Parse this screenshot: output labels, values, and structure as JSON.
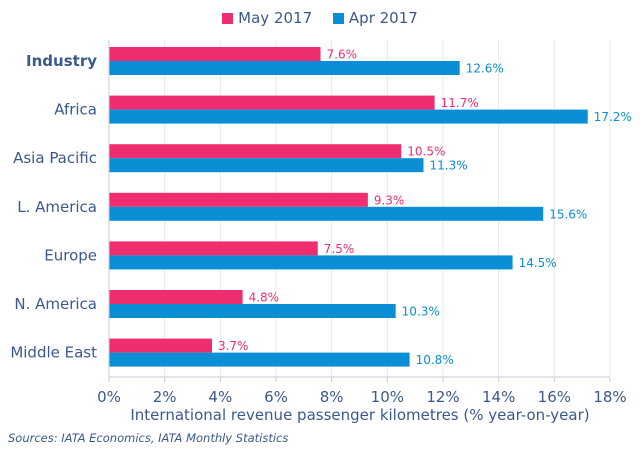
{
  "chart_data": {
    "type": "bar",
    "orientation": "horizontal",
    "title": "",
    "categories": [
      "Industry",
      "Africa",
      "Asia Pacific",
      "L. America",
      "Europe",
      "N. America",
      "Middle East"
    ],
    "emphasized_category": "Industry",
    "series": [
      {
        "name": "May 2017",
        "color": "#ef2d70",
        "values": [
          7.6,
          11.7,
          10.5,
          9.3,
          7.5,
          4.8,
          3.7
        ],
        "labels": [
          "7.6%",
          "11.7%",
          "10.5%",
          "9.3%",
          "7.5%",
          "4.8%",
          "3.7%"
        ]
      },
      {
        "name": "Apr 2017",
        "color": "#0a8fd6",
        "values": [
          12.6,
          17.2,
          11.3,
          15.6,
          14.5,
          10.3,
          10.8
        ],
        "labels": [
          "12.6%",
          "17.2%",
          "11.3%",
          "15.6%",
          "14.5%",
          "10.3%",
          "10.8%"
        ]
      }
    ],
    "xlabel": "International revenue passenger kilometres (% year-on-year)",
    "ylabel": "",
    "xlim": [
      0,
      18
    ],
    "xticks": [
      0,
      2,
      4,
      6,
      8,
      10,
      12,
      14,
      16,
      18
    ],
    "xtick_labels": [
      "0%",
      "2%",
      "4%",
      "6%",
      "8%",
      "10%",
      "12%",
      "14%",
      "16%",
      "18%"
    ],
    "grid": true,
    "legend_position": "top-center",
    "label_color": "#3a5a8c",
    "gridline_color": "#e4e8ee",
    "axis_color": "#c4cbd6"
  },
  "legend": [
    {
      "label": "May 2017",
      "color": "#ef2d70"
    },
    {
      "label": "Apr 2017",
      "color": "#0a8fd6"
    }
  ],
  "source": "Sources: IATA Economics, IATA Monthly Statistics"
}
